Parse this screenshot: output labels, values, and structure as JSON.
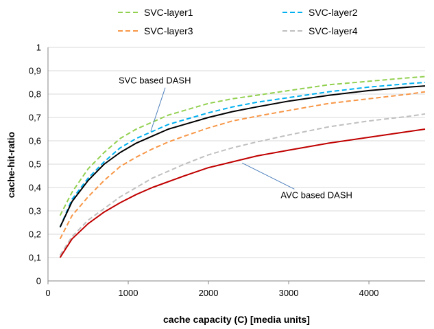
{
  "chart_data": {
    "type": "line",
    "xlabel": "cache capacity (C) [media units]",
    "ylabel": "cache-hit-ratio",
    "xlim": [
      0,
      4700
    ],
    "ylim": [
      0,
      1
    ],
    "xticks": [
      0,
      1000,
      2000,
      3000,
      4000
    ],
    "yticks": [
      0,
      0.1,
      0.2,
      0.3,
      0.4,
      0.5,
      0.6,
      0.7,
      0.8,
      0.9,
      1
    ],
    "xtick_labels": [
      "0",
      "1000",
      "2000",
      "3000",
      "4000"
    ],
    "ytick_labels": [
      "0",
      "0,1",
      "0,2",
      "0,3",
      "0,4",
      "0,5",
      "0,6",
      "0,7",
      "0,8",
      "0,9",
      "1"
    ],
    "grid": "horizontal",
    "legend_position": "top",
    "legend_order": [
      0,
      2,
      1,
      3
    ],
    "x": [
      150,
      300,
      500,
      700,
      900,
      1100,
      1300,
      1500,
      1700,
      2000,
      2300,
      2600,
      3000,
      3500,
      4000,
      4500,
      4700
    ],
    "series": [
      {
        "name": "SVC-layer1",
        "color": "#92d050",
        "dash": "dashed",
        "values": [
          0.28,
          0.38,
          0.48,
          0.55,
          0.61,
          0.65,
          0.68,
          0.71,
          0.73,
          0.76,
          0.78,
          0.795,
          0.815,
          0.84,
          0.855,
          0.87,
          0.875
        ]
      },
      {
        "name": "SVC-layer2",
        "color": "#00b0f0",
        "dash": "dashed",
        "values": [
          0.23,
          0.35,
          0.44,
          0.51,
          0.57,
          0.61,
          0.64,
          0.67,
          0.69,
          0.72,
          0.745,
          0.765,
          0.785,
          0.81,
          0.83,
          0.845,
          0.85
        ]
      },
      {
        "name": "SVC-layer3",
        "color": "#f79646",
        "dash": "dashed",
        "values": [
          0.18,
          0.28,
          0.36,
          0.43,
          0.49,
          0.53,
          0.565,
          0.595,
          0.62,
          0.655,
          0.685,
          0.705,
          0.73,
          0.76,
          0.78,
          0.8,
          0.81
        ]
      },
      {
        "name": "SVC-layer4",
        "color": "#bfbfbf",
        "dash": "dashed",
        "values": [
          0.11,
          0.19,
          0.26,
          0.31,
          0.36,
          0.4,
          0.44,
          0.47,
          0.5,
          0.54,
          0.57,
          0.595,
          0.625,
          0.66,
          0.685,
          0.705,
          0.715
        ]
      },
      {
        "name": "",
        "color": "#000000",
        "dash": "solid",
        "values": [
          0.23,
          0.34,
          0.43,
          0.5,
          0.55,
          0.59,
          0.62,
          0.65,
          0.67,
          0.7,
          0.725,
          0.745,
          0.77,
          0.795,
          0.815,
          0.83,
          0.835
        ]
      },
      {
        "name": "",
        "color": "#c00000",
        "dash": "solid",
        "values": [
          0.1,
          0.18,
          0.245,
          0.295,
          0.335,
          0.37,
          0.4,
          0.425,
          0.45,
          0.485,
          0.51,
          0.535,
          0.56,
          0.59,
          0.615,
          0.64,
          0.65
        ]
      }
    ],
    "annotations": [
      {
        "text": "SVC based DASH",
        "label_at": [
          880,
          0.845
        ],
        "arrow_to": [
          1280,
          0.64
        ]
      },
      {
        "text": "AVC based DASH",
        "label_at": [
          2900,
          0.355
        ],
        "arrow_to": [
          2420,
          0.505
        ]
      }
    ]
  }
}
